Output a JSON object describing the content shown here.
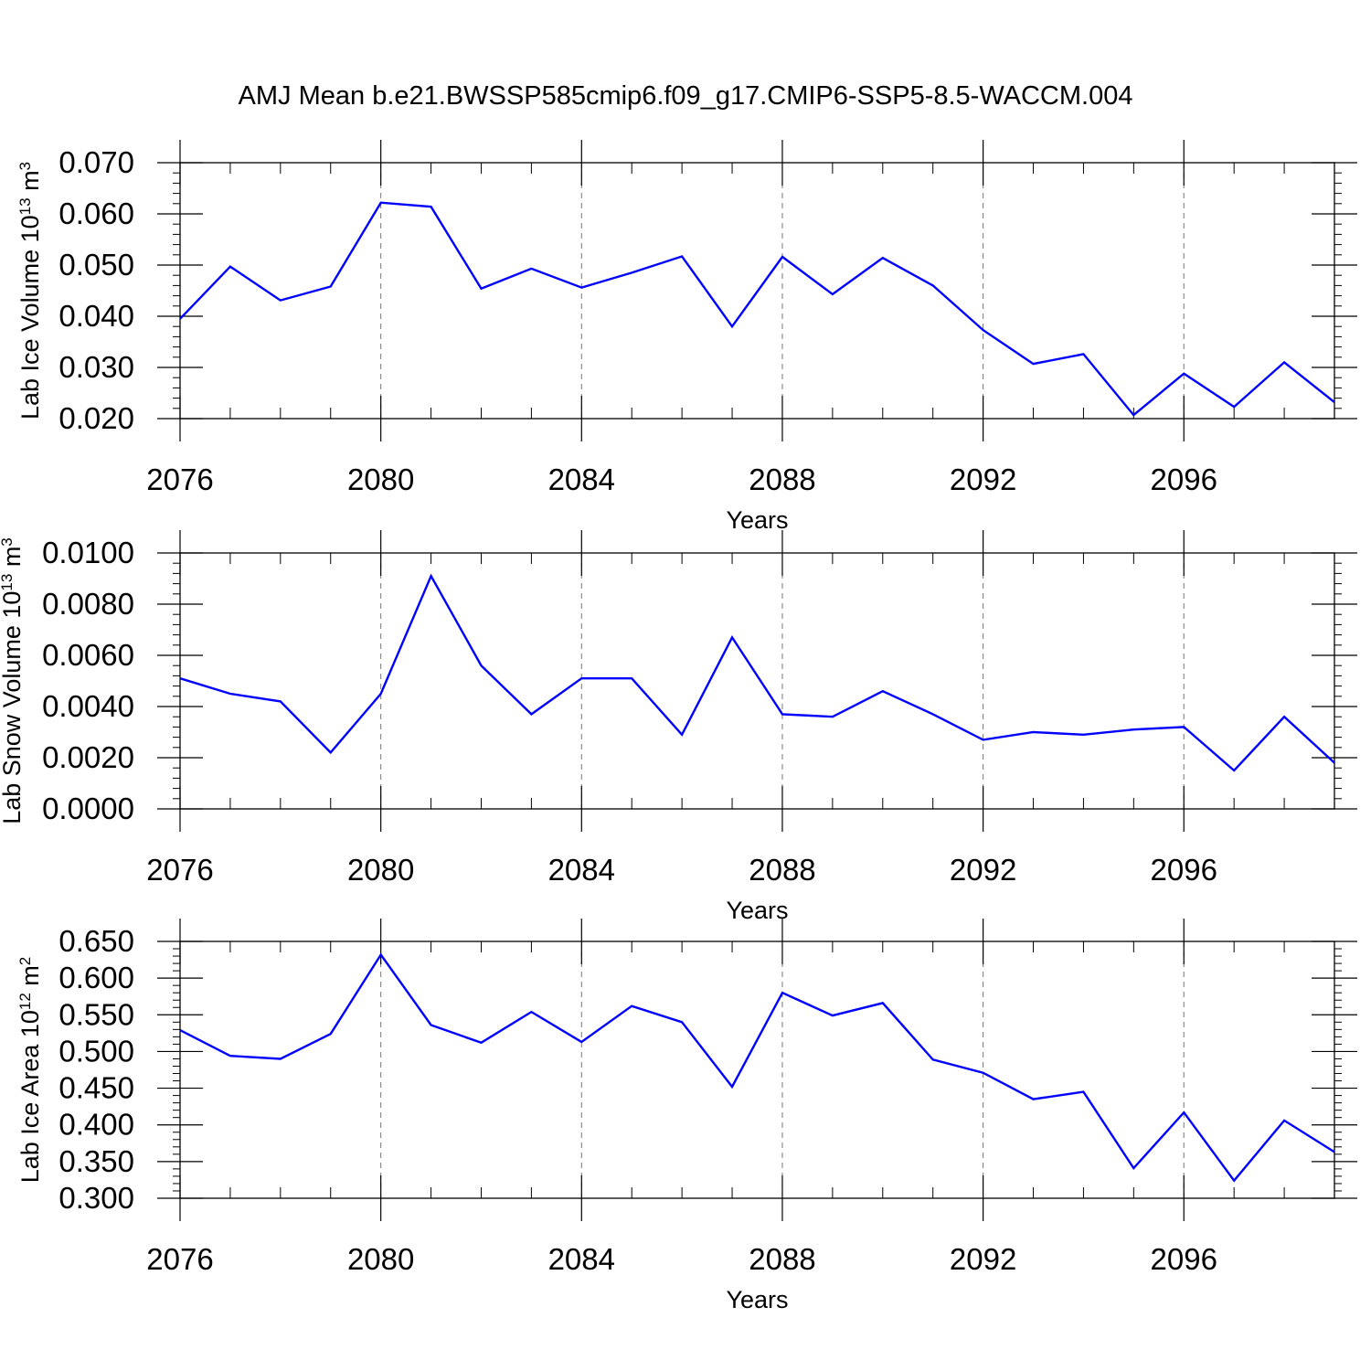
{
  "title": "AMJ Mean b.e21.BWSSP585cmip6.f09_g17.CMIP6-SSP5-8.5-WACCM.004",
  "line_color": "#0000ff",
  "chart_data": [
    {
      "type": "line",
      "ylabel_main": "Lab Ice Volume 10",
      "ylabel_exp": "13",
      "ylabel_unit": " m",
      "ylabel_unit_exp": "3",
      "xlabel": "Years",
      "xlim": [
        2076,
        2099
      ],
      "ylim": [
        0.02,
        0.07
      ],
      "yticks": [
        "0.020",
        "0.030",
        "0.040",
        "0.050",
        "0.060",
        "0.070"
      ],
      "xticks": [
        "2076",
        "2080",
        "2084",
        "2088",
        "2092",
        "2096"
      ],
      "x": [
        2076,
        2077,
        2078,
        2079,
        2080,
        2081,
        2082,
        2083,
        2084,
        2085,
        2086,
        2087,
        2088,
        2089,
        2090,
        2091,
        2092,
        2093,
        2094,
        2095,
        2096,
        2097,
        2098,
        2099
      ],
      "series": [
        {
          "values": [
            0.0395,
            0.0497,
            0.0431,
            0.0458,
            0.0622,
            0.0614,
            0.0454,
            0.0493,
            0.0456,
            0.0485,
            0.0517,
            0.038,
            0.0516,
            0.0443,
            0.0514,
            0.046,
            0.0373,
            0.0307,
            0.0326,
            0.0207,
            0.0288,
            0.0223,
            0.031,
            0.0232
          ]
        }
      ],
      "grid": "dashed vertical at major x ticks"
    },
    {
      "type": "line",
      "ylabel_main": "Lab Snow Volume 10",
      "ylabel_exp": "13",
      "ylabel_unit": " m",
      "ylabel_unit_exp": "3",
      "xlabel": "Years",
      "xlim": [
        2076,
        2099
      ],
      "ylim": [
        0.0,
        0.01
      ],
      "yticks": [
        "0.0000",
        "0.0020",
        "0.0040",
        "0.0060",
        "0.0080",
        "0.0100"
      ],
      "xticks": [
        "2076",
        "2080",
        "2084",
        "2088",
        "2092",
        "2096"
      ],
      "x": [
        2076,
        2077,
        2078,
        2079,
        2080,
        2081,
        2082,
        2083,
        2084,
        2085,
        2086,
        2087,
        2088,
        2089,
        2090,
        2091,
        2092,
        2093,
        2094,
        2095,
        2096,
        2097,
        2098,
        2099
      ],
      "series": [
        {
          "values": [
            0.0051,
            0.0045,
            0.0042,
            0.0022,
            0.0045,
            0.0091,
            0.0056,
            0.0037,
            0.0051,
            0.0051,
            0.0029,
            0.0067,
            0.0037,
            0.0036,
            0.0046,
            0.0037,
            0.0027,
            0.003,
            0.0029,
            0.0031,
            0.0032,
            0.0015,
            0.0036,
            0.0018
          ]
        }
      ],
      "grid": "dashed vertical at major x ticks"
    },
    {
      "type": "line",
      "ylabel_main": "Lab Ice Area 10",
      "ylabel_exp": "12",
      "ylabel_unit": " m",
      "ylabel_unit_exp": "2",
      "xlabel": "Years",
      "xlim": [
        2076,
        2099
      ],
      "ylim": [
        0.3,
        0.65
      ],
      "yticks": [
        "0.300",
        "0.350",
        "0.400",
        "0.450",
        "0.500",
        "0.550",
        "0.600",
        "0.650"
      ],
      "xticks": [
        "2076",
        "2080",
        "2084",
        "2088",
        "2092",
        "2096"
      ],
      "x": [
        2076,
        2077,
        2078,
        2079,
        2080,
        2081,
        2082,
        2083,
        2084,
        2085,
        2086,
        2087,
        2088,
        2089,
        2090,
        2091,
        2092,
        2093,
        2094,
        2095,
        2096,
        2097,
        2098,
        2099
      ],
      "series": [
        {
          "values": [
            0.529,
            0.494,
            0.49,
            0.524,
            0.632,
            0.536,
            0.512,
            0.554,
            0.513,
            0.562,
            0.54,
            0.452,
            0.58,
            0.549,
            0.566,
            0.489,
            0.471,
            0.435,
            0.445,
            0.341,
            0.417,
            0.324,
            0.406,
            0.363
          ]
        }
      ],
      "grid": "dashed vertical at major x ticks"
    }
  ]
}
